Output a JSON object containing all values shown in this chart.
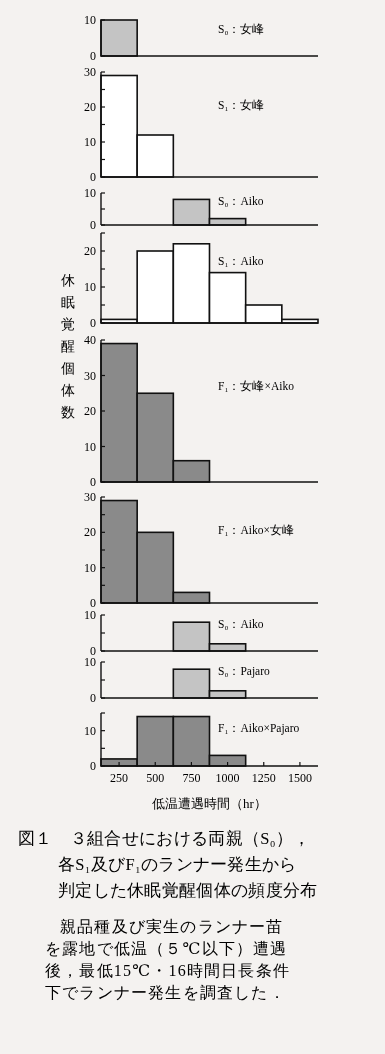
{
  "chart_data": [
    {
      "type": "histogram",
      "title": "S₀：女峰",
      "bins": [
        125,
        375,
        625,
        875,
        1125,
        1375,
        1625
      ],
      "values": [
        10,
        0,
        0,
        0,
        0,
        0
      ],
      "color": "#c4c4c4",
      "xlim": [
        125,
        1625
      ],
      "ylim": [
        0,
        10
      ],
      "yticks": [
        0,
        10
      ],
      "tick_labels": "y"
    },
    {
      "type": "histogram",
      "title": "S₁：女峰",
      "bins": [
        125,
        375,
        625,
        875,
        1125,
        1375,
        1625
      ],
      "values": [
        29,
        12,
        0,
        0,
        0,
        0
      ],
      "color": "#ffffff",
      "xlim": [
        125,
        1625
      ],
      "ylim": [
        0,
        30
      ],
      "yticks": [
        0,
        {
          "value": 5,
          "label": null
        },
        10,
        {
          "value": 15,
          "label": null
        },
        20,
        {
          "value": 25,
          "label": null
        },
        30
      ],
      "tick_labels": "y"
    },
    {
      "type": "histogram",
      "title": "S₀：Aiko",
      "bins": [
        125,
        375,
        625,
        875,
        1125,
        1375,
        1625
      ],
      "values": [
        0,
        0,
        8,
        2,
        0,
        0
      ],
      "color": "#c4c4c4",
      "xlim": [
        125,
        1625
      ],
      "ylim": [
        0,
        10
      ],
      "yticks": [
        0,
        {
          "value": 5,
          "label": null
        },
        10
      ],
      "tick_labels": "y"
    },
    {
      "type": "histogram",
      "title": "S₁：Aiko",
      "bins": [
        125,
        375,
        625,
        875,
        1125,
        1375,
        1625
      ],
      "values": [
        1,
        20,
        22,
        14,
        5,
        1
      ],
      "color": "#ffffff",
      "xlim": [
        125,
        1625
      ],
      "ylim": [
        0,
        25
      ],
      "yticks": [
        0,
        {
          "value": 5,
          "label": null
        },
        10,
        {
          "value": 15,
          "label": null
        },
        20,
        {
          "value": 25,
          "label": null
        }
      ],
      "tick_labels": "y"
    },
    {
      "type": "histogram",
      "title": "F₁：女峰×Aiko",
      "ylabel": "休眠覚醒個体数",
      "bins": [
        125,
        375,
        625,
        875,
        1125,
        1375,
        1625
      ],
      "values": [
        39,
        25,
        6,
        0,
        0,
        0
      ],
      "color": "#8a8a8a",
      "xlim": [
        125,
        1625
      ],
      "ylim": [
        0,
        40
      ],
      "yticks": [
        0,
        10,
        20,
        30,
        40
      ],
      "tick_labels": "y"
    },
    {
      "type": "histogram",
      "title": "F₁：Aiko×女峰",
      "bins": [
        125,
        375,
        625,
        875,
        1125,
        1375,
        1625
      ],
      "values": [
        29,
        20,
        3,
        0,
        0,
        0
      ],
      "color": "#8a8a8a",
      "xlim": [
        125,
        1625
      ],
      "ylim": [
        0,
        30
      ],
      "yticks": [
        0,
        {
          "value": 5,
          "label": null
        },
        10,
        {
          "value": 15,
          "label": null
        },
        20,
        {
          "value": 25,
          "label": null
        },
        30
      ],
      "tick_labels": "y"
    },
    {
      "type": "histogram",
      "title": "S₀：Aiko",
      "bins": [
        125,
        375,
        625,
        875,
        1125,
        1375,
        1625
      ],
      "values": [
        0,
        0,
        8,
        2,
        0,
        0
      ],
      "color": "#c4c4c4",
      "xlim": [
        125,
        1625
      ],
      "ylim": [
        0,
        10
      ],
      "yticks": [
        0,
        {
          "value": 5,
          "label": null
        },
        10
      ],
      "tick_labels": "y"
    },
    {
      "type": "histogram",
      "title": "S₀：Pajaro",
      "bins": [
        125,
        375,
        625,
        875,
        1125,
        1375,
        1625
      ],
      "values": [
        0,
        0,
        8,
        2,
        0,
        0
      ],
      "color": "#c4c4c4",
      "xlim": [
        125,
        1625
      ],
      "ylim": [
        0,
        10
      ],
      "yticks": [
        0,
        {
          "value": 5,
          "label": null
        },
        10
      ],
      "tick_labels": "y"
    },
    {
      "type": "histogram",
      "title": "F₁：Aiko×Pajaro",
      "xlabel": "低温遭遇時間（hr）",
      "bins": [
        125,
        375,
        625,
        875,
        1125,
        1375,
        1625
      ],
      "values": [
        2,
        14,
        14,
        3,
        0,
        0
      ],
      "color": "#8a8a8a",
      "xlim": [
        125,
        1625
      ],
      "ylim": [
        0,
        15
      ],
      "yticks": [
        0,
        {
          "value": 5,
          "label": null
        },
        10,
        {
          "value": 15,
          "label": null
        }
      ],
      "xticks": [
        250,
        500,
        750,
        1000,
        1250,
        1500
      ],
      "annotations": [
        "図１　３組合せにおける両親（S₀），",
        "各S₁及びF₁のランナー発生から",
        "判定した休眠覚醒個体の頻度分布",
        "親品種及び実生のランナー苗",
        "を露地で低温（５℃以下）遭遇",
        "後，最低15℃・16時間日長条件",
        "下でランナー発生を調査した．"
      ]
    }
  ]
}
